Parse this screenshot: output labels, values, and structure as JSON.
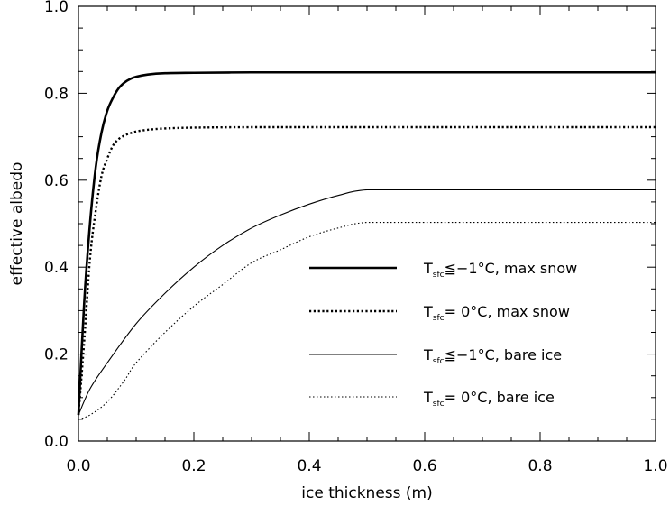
{
  "chart_data": {
    "type": "line",
    "title": "",
    "xlabel": "ice thickness (m)",
    "ylabel": "effective albedo",
    "xlim": [
      0.0,
      1.0
    ],
    "ylim": [
      0.0,
      1.0
    ],
    "xticks": [
      "0.0",
      "0.2",
      "0.4",
      "0.6",
      "0.8",
      "1.0"
    ],
    "yticks": [
      "0.0",
      "0.2",
      "0.4",
      "0.6",
      "0.8",
      "1.0"
    ],
    "grid": false,
    "legend_position": "bottom-right",
    "series": [
      {
        "name": "T_sfc ≦ −1°C, max snow",
        "legend_main": "T",
        "legend_sub": "sfc",
        "legend_rest": "≦−1°C, max snow",
        "style": "thick-solid",
        "x": [
          0.0,
          0.01,
          0.02,
          0.03,
          0.04,
          0.05,
          0.06,
          0.07,
          0.08,
          0.09,
          0.1,
          0.12,
          0.15,
          0.2,
          0.3,
          0.4,
          0.5,
          0.6,
          0.8,
          1.0
        ],
        "y": [
          0.06,
          0.32,
          0.5,
          0.63,
          0.71,
          0.76,
          0.79,
          0.812,
          0.825,
          0.833,
          0.838,
          0.843,
          0.846,
          0.847,
          0.848,
          0.848,
          0.848,
          0.848,
          0.848,
          0.848
        ]
      },
      {
        "name": "T_sfc = 0°C, max snow",
        "legend_main": "T",
        "legend_sub": "sfc",
        "legend_rest": "= 0°C, max snow",
        "style": "thick-dotted",
        "x": [
          0.0,
          0.01,
          0.02,
          0.03,
          0.04,
          0.05,
          0.06,
          0.07,
          0.08,
          0.09,
          0.1,
          0.12,
          0.15,
          0.2,
          0.3,
          0.4,
          0.5,
          0.6,
          0.8,
          1.0
        ],
        "y": [
          0.06,
          0.23,
          0.42,
          0.53,
          0.61,
          0.65,
          0.68,
          0.695,
          0.703,
          0.708,
          0.712,
          0.716,
          0.719,
          0.721,
          0.722,
          0.722,
          0.722,
          0.722,
          0.722,
          0.722
        ]
      },
      {
        "name": "T_sfc ≦ −1°C, bare ice",
        "legend_main": "T",
        "legend_sub": "sfc",
        "legend_rest": "≦−1°C, bare ice",
        "style": "thin-solid",
        "x": [
          0.0,
          0.02,
          0.05,
          0.1,
          0.15,
          0.2,
          0.25,
          0.3,
          0.35,
          0.4,
          0.45,
          0.5,
          0.6,
          0.8,
          1.0
        ],
        "y": [
          0.06,
          0.12,
          0.18,
          0.27,
          0.34,
          0.4,
          0.45,
          0.49,
          0.52,
          0.545,
          0.565,
          0.578,
          0.578,
          0.578,
          0.578
        ]
      },
      {
        "name": "T_sfc = 0°C, bare ice",
        "legend_main": "T",
        "legend_sub": "sfc",
        "legend_rest": "= 0°C, bare ice",
        "style": "thin-dotted",
        "x": [
          0.0,
          0.02,
          0.05,
          0.08,
          0.1,
          0.15,
          0.2,
          0.25,
          0.3,
          0.35,
          0.4,
          0.45,
          0.5,
          0.6,
          0.8,
          1.0
        ],
        "y": [
          0.05,
          0.06,
          0.09,
          0.14,
          0.18,
          0.25,
          0.31,
          0.36,
          0.41,
          0.44,
          0.47,
          0.49,
          0.503,
          0.503,
          0.503,
          0.503
        ]
      }
    ]
  }
}
